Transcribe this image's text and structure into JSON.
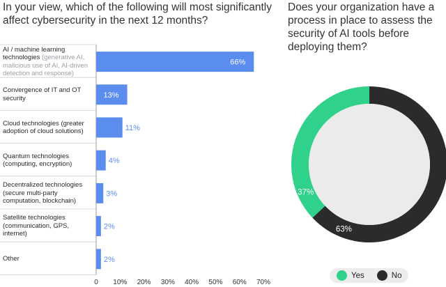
{
  "chart_data": [
    {
      "type": "bar",
      "orientation": "horizontal",
      "title": "In your view, which of the following will most significantly affect cybersecurity in the next 12 months?",
      "categories": [
        {
          "label": "AI / machine learning technologies",
          "detail": "(generative AI, malicious use of AI, AI-driven detection and response)"
        },
        {
          "label": "Convergence of IT and OT security",
          "detail": ""
        },
        {
          "label": "Cloud technologies (greater adoption of cloud solutions)",
          "detail": ""
        },
        {
          "label": "Quantum technologies (computing, encryption)",
          "detail": ""
        },
        {
          "label": "Decentralized technologies (secure multi-party computation, blockchain)",
          "detail": ""
        },
        {
          "label": "Satellite technologies (communication, GPS, internet)",
          "detail": ""
        },
        {
          "label": "Other",
          "detail": ""
        }
      ],
      "values": [
        66,
        13,
        11,
        4,
        3,
        2,
        2
      ],
      "value_labels": [
        "66%",
        "13%",
        "11%",
        "4%",
        "3%",
        "2%",
        "2%"
      ],
      "xlim": [
        0,
        70
      ],
      "xticks": [
        "0",
        "10%",
        "20%",
        "30%",
        "40%",
        "50%",
        "60%",
        "70%"
      ],
      "bar_color": "#5b8def"
    },
    {
      "type": "pie",
      "style": "donut",
      "title": "Does your organization have a process in place to assess the security of AI tools before deploying them?",
      "slices": [
        {
          "label": "Yes",
          "value": 37,
          "value_label": "37%",
          "color": "#2fd18b"
        },
        {
          "label": "No",
          "value": 63,
          "value_label": "63%",
          "color": "#2b2b2b"
        }
      ],
      "legend_position": "bottom"
    }
  ]
}
